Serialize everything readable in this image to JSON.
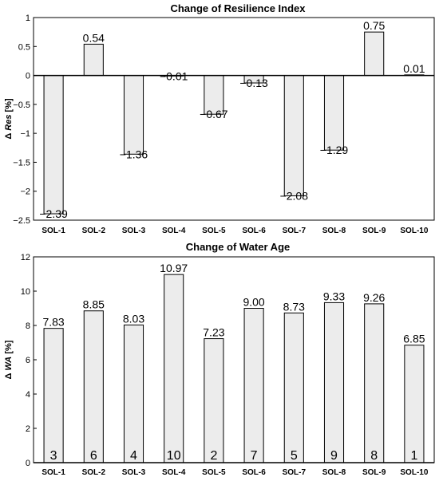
{
  "chart_data": [
    {
      "type": "bar",
      "title": "Change of Resilience Index",
      "ylabel_prefix": "Δ",
      "ylabel_var": "Res",
      "ylabel_suffix": "[%]",
      "categories": [
        "SOL-1",
        "SOL-2",
        "SOL-3",
        "SOL-4",
        "SOL-5",
        "SOL-6",
        "SOL-7",
        "SOL-8",
        "SOL-9",
        "SOL-10"
      ],
      "values": [
        -2.39,
        0.54,
        -1.36,
        -0.01,
        -0.67,
        -0.13,
        -2.08,
        -1.29,
        0.75,
        0.01
      ],
      "value_labels": [
        "−2.39",
        "0.54",
        "−1.36",
        "−0.01",
        "−0.67",
        "−0.13",
        "−2.08",
        "−1.29",
        "0.75",
        "0.01"
      ],
      "ylim": [
        -2.5,
        1
      ],
      "yticks": [
        -2.5,
        -2,
        -1.5,
        -1,
        -0.5,
        0,
        0.5,
        1
      ],
      "ytick_labels": [
        "−2.5",
        "−2",
        "−1.5",
        "−1",
        "−0.5",
        "0",
        "0.5",
        "1"
      ],
      "grid": false,
      "bar_color": "#ececec",
      "edge_color": "#000000"
    },
    {
      "type": "bar",
      "title": "Change of Water Age",
      "ylabel_prefix": "Δ",
      "ylabel_var": "WA",
      "ylabel_suffix": "[%]",
      "categories": [
        "SOL-1",
        "SOL-2",
        "SOL-3",
        "SOL-4",
        "SOL-5",
        "SOL-6",
        "SOL-7",
        "SOL-8",
        "SOL-9",
        "SOL-10"
      ],
      "values": [
        7.83,
        8.85,
        8.03,
        10.97,
        7.23,
        9.0,
        8.73,
        9.33,
        9.26,
        6.85
      ],
      "value_labels": [
        "7.83",
        "8.85",
        "8.03",
        "10.97",
        "7.23",
        "9.00",
        "8.73",
        "9.33",
        "9.26",
        "6.85"
      ],
      "ranks": [
        "3",
        "6",
        "4",
        "10",
        "2",
        "7",
        "5",
        "9",
        "8",
        "1"
      ],
      "ylim": [
        0,
        12
      ],
      "yticks": [
        0,
        2,
        4,
        6,
        8,
        10,
        12
      ],
      "ytick_labels": [
        "0",
        "2",
        "4",
        "6",
        "8",
        "10",
        "12"
      ],
      "grid": false,
      "bar_color": "#ececec",
      "edge_color": "#000000"
    }
  ]
}
